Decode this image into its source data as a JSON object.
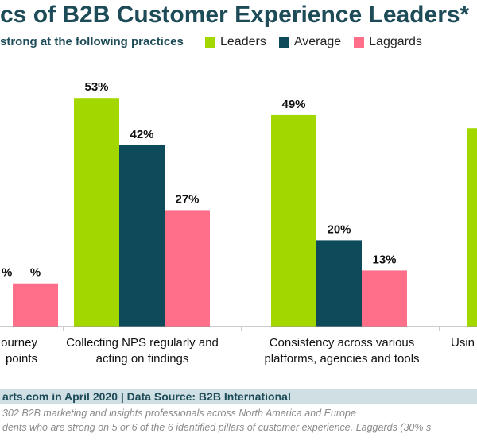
{
  "chart_data": {
    "type": "bar",
    "title": "cs of B2B Customer Experience Leaders*",
    "subtitle": "strong at the following practices",
    "categories": [
      [
        "ourney",
        "points"
      ],
      [
        "Collecting NPS regularly and",
        "acting on findings"
      ],
      [
        "Consistency across various",
        "platforms, agencies and tools"
      ],
      [
        "Usin"
      ]
    ],
    "series": [
      {
        "name": "Leaders",
        "color": "#a3d700",
        "values": [
          null,
          53,
          49,
          null
        ]
      },
      {
        "name": "Average",
        "color": "#0d4a5a",
        "values": [
          null,
          42,
          20,
          null
        ]
      },
      {
        "name": "Laggards",
        "color": "#ff6f8a",
        "values": [
          null,
          27,
          13,
          null
        ]
      }
    ],
    "data_labels": [
      [
        null,
        "53%",
        "49%",
        null
      ],
      [
        null,
        "42%",
        "20%",
        null
      ],
      [
        "%",
        "27%",
        "13%",
        null
      ]
    ],
    "partial_bars_note": "partially cropped bars: first-group Laggards and last-group Leaders",
    "ylim": [
      0,
      60
    ],
    "grid": false,
    "legend_position": "top-right"
  },
  "footer": {
    "source": "arts.com in April 2020 | Data Source: B2B International",
    "note_line1": "302 B2B marketing and insights professionals across North America and Europe",
    "note_line2": "dents who are strong on 5 or 6 of the 6 identified pillars of customer experience. Laggards (30% s"
  }
}
